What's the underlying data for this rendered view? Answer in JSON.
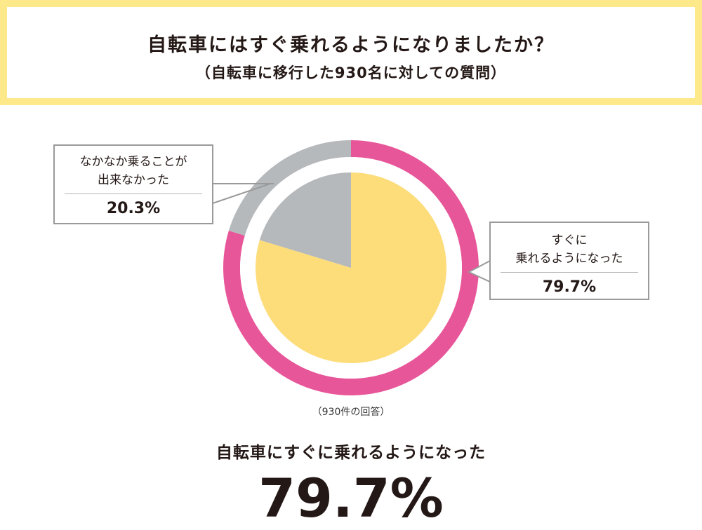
{
  "header": {
    "title": "自転車にはすぐ乗れるようになりましたか？",
    "subtitle": "（自転車に移行した930名に対しての質問）"
  },
  "chart_data": {
    "type": "pie",
    "labels": [
      "すぐに乗れるようになった",
      "なかなか乗ることが出来なかった"
    ],
    "values": [
      79.7,
      20.3
    ],
    "unit": "%",
    "colors": {
      "inner": [
        "#fddc7a",
        "#b5b9bc"
      ],
      "outer": [
        "#e8569a",
        "#b5b9bc"
      ]
    }
  },
  "callouts": {
    "left": {
      "line1": "なかなか乗ることが",
      "line2": "出来なかった",
      "value": "20.3%"
    },
    "right": {
      "line1": "すぐに",
      "line2": "乗れるようになった",
      "value": "79.7%"
    }
  },
  "footnote": "（930件の回答）",
  "summary": {
    "label": "自転車にすぐに乗れるようになった",
    "value": "79.7%"
  }
}
